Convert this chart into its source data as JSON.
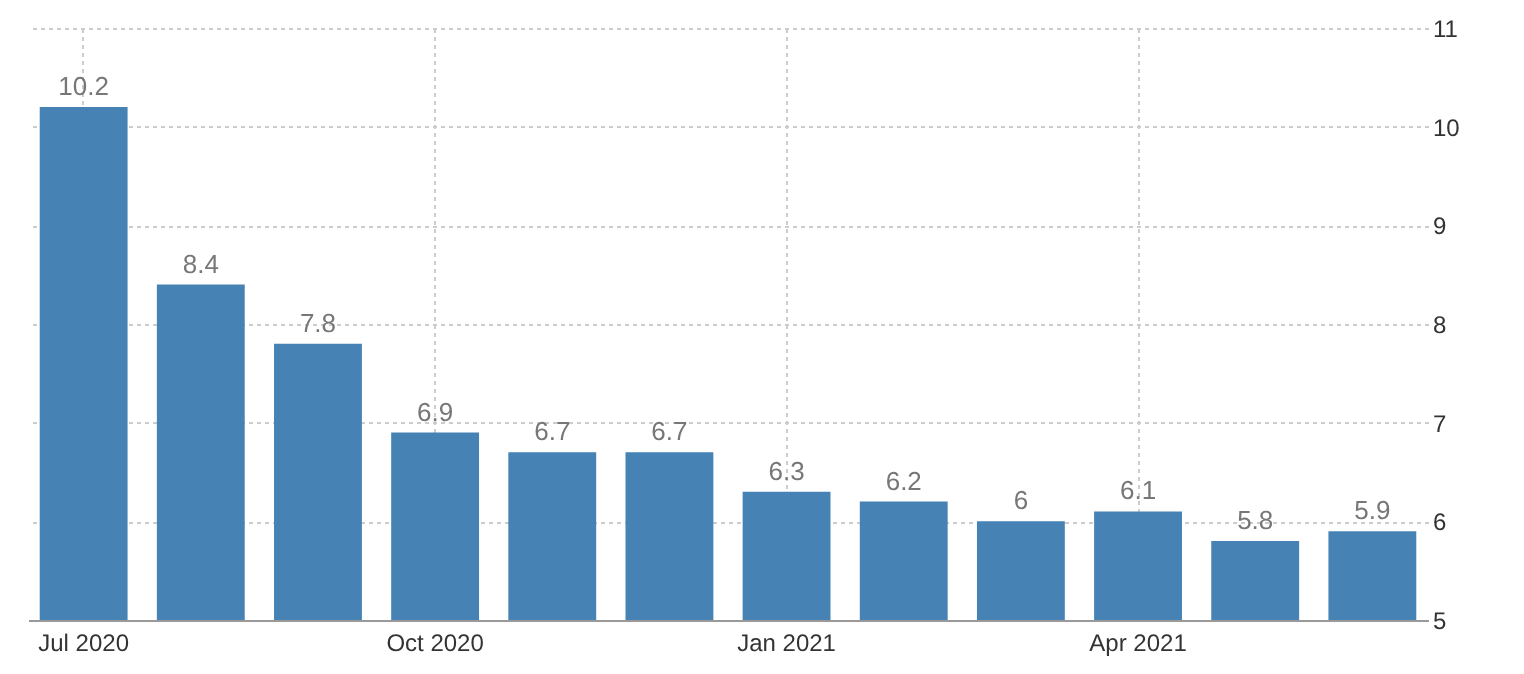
{
  "chart_data": {
    "type": "bar",
    "categories": [
      "Jul 2020",
      null,
      null,
      "Oct 2020",
      null,
      null,
      "Jan 2021",
      null,
      null,
      "Apr 2021",
      null,
      null
    ],
    "values": [
      10.2,
      8.4,
      7.8,
      6.9,
      6.7,
      6.7,
      6.3,
      6.2,
      6,
      6.1,
      5.8,
      5.9
    ],
    "color": "#4682b4",
    "ylim": [
      5,
      11
    ],
    "yticks": [
      5,
      6,
      7,
      8,
      9,
      10,
      11
    ],
    "grid": true,
    "data_labels": true
  }
}
